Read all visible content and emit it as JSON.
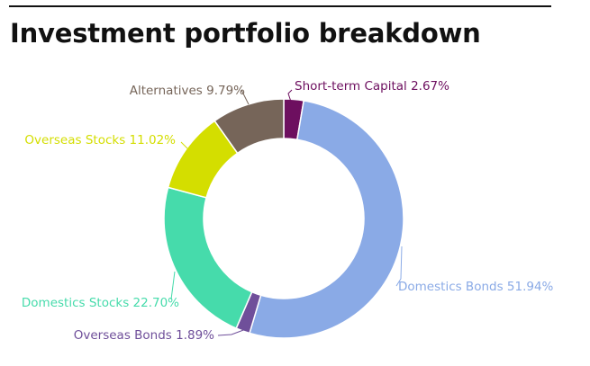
{
  "header": {
    "title": "Investment portfolio breakdown"
  },
  "chart_data": {
    "type": "pie",
    "style": "donut",
    "title": "Investment portfolio breakdown",
    "slices": [
      {
        "label": "Short-term Capital",
        "value_label": "2.67%",
        "value": 2.67,
        "color": "#6d0f5f"
      },
      {
        "label": "Domestics Bonds",
        "value_label": "51.94%",
        "value": 51.94,
        "color": "#8aaae6"
      },
      {
        "label": "Overseas Bonds",
        "value_label": "1.89%",
        "value": 1.89,
        "color": "#6f4f9a"
      },
      {
        "label": "Domestics Stocks",
        "value_label": "22.70%",
        "value": 22.7,
        "color": "#46dbab"
      },
      {
        "label": "Overseas Stocks",
        "value_label": "11.02%",
        "value": 11.02,
        "color": "#d4de00"
      },
      {
        "label": "Alternatives",
        "value_label": "9.79%",
        "value": 9.79,
        "color": "#766559"
      }
    ]
  }
}
